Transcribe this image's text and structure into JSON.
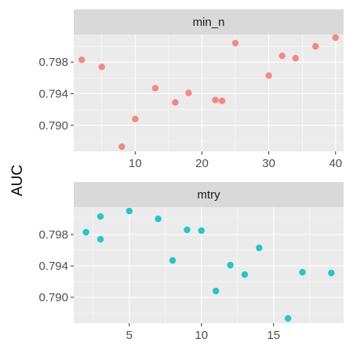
{
  "chart_data": {
    "type": "scatter",
    "ylabel": "AUC",
    "xlabel": "",
    "facets": [
      {
        "name": "min_n",
        "color": "#F8766D",
        "xlim": [
          0.8,
          41.2
        ],
        "ylim": [
          0.7867,
          0.8015
        ],
        "x_ticks": [
          10,
          20,
          30,
          40
        ],
        "x_minor": [
          5,
          15,
          25,
          35
        ],
        "y_ticks": [
          0.79,
          0.794,
          0.798
        ],
        "y_tick_labels": [
          "0.790",
          "0.794",
          "0.798"
        ],
        "y_minor": [
          0.788,
          0.792,
          0.796,
          0.8
        ],
        "points": [
          {
            "x": 2,
            "y": 0.7983
          },
          {
            "x": 5,
            "y": 0.7974
          },
          {
            "x": 8,
            "y": 0.7873
          },
          {
            "x": 10,
            "y": 0.7908
          },
          {
            "x": 13,
            "y": 0.7947
          },
          {
            "x": 16,
            "y": 0.7929
          },
          {
            "x": 18,
            "y": 0.7941
          },
          {
            "x": 22,
            "y": 0.7932
          },
          {
            "x": 23,
            "y": 0.7931
          },
          {
            "x": 25,
            "y": 0.8004
          },
          {
            "x": 30,
            "y": 0.7963
          },
          {
            "x": 32,
            "y": 0.7988
          },
          {
            "x": 34,
            "y": 0.7985
          },
          {
            "x": 37,
            "y": 0.8
          },
          {
            "x": 40,
            "y": 0.8011
          }
        ]
      },
      {
        "name": "mtry",
        "color": "#00BFC4",
        "xlim": [
          1.15,
          19.85
        ],
        "ylim": [
          0.7867,
          0.8015
        ],
        "x_ticks": [
          5,
          10,
          15
        ],
        "x_minor": [
          2.5,
          7.5,
          12.5,
          17.5
        ],
        "y_ticks": [
          0.79,
          0.794,
          0.798
        ],
        "y_tick_labels": [
          "0.790",
          "0.794",
          "0.798"
        ],
        "y_minor": [
          0.788,
          0.792,
          0.796,
          0.8
        ],
        "points": [
          {
            "x": 2,
            "y": 0.7983
          },
          {
            "x": 3,
            "y": 0.8003
          },
          {
            "x": 3,
            "y": 0.7974
          },
          {
            "x": 5,
            "y": 0.801
          },
          {
            "x": 7,
            "y": 0.8
          },
          {
            "x": 8,
            "y": 0.7947
          },
          {
            "x": 9,
            "y": 0.7986
          },
          {
            "x": 10,
            "y": 0.7985
          },
          {
            "x": 11,
            "y": 0.7908
          },
          {
            "x": 12,
            "y": 0.7941
          },
          {
            "x": 13,
            "y": 0.7929
          },
          {
            "x": 14,
            "y": 0.7963
          },
          {
            "x": 16,
            "y": 0.7873
          },
          {
            "x": 17,
            "y": 0.7932
          },
          {
            "x": 19,
            "y": 0.7931
          }
        ]
      }
    ]
  }
}
